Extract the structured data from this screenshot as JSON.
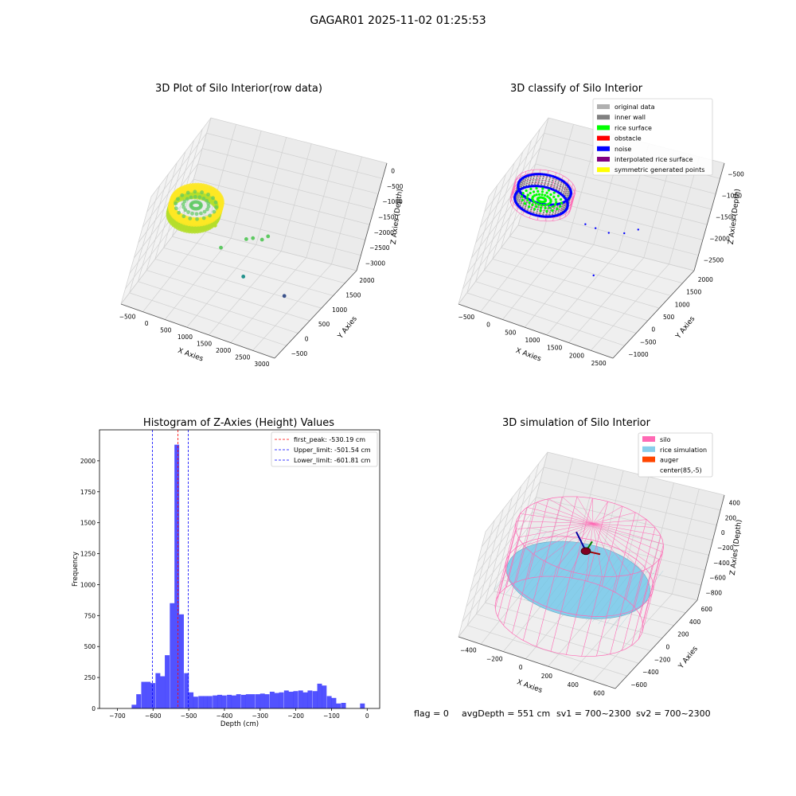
{
  "figure_title": "GAGAR01 2025-11-02 01:25:53",
  "footer": {
    "flag": "flag = 0",
    "avg": "avgDepth = 551 cm",
    "sv1": "sv1 = 700~2300",
    "sv2": "sv2 = 700~2300"
  },
  "colors": {
    "pane": "#f2f2f2",
    "grid": "#d0d0d0",
    "silo": "#ff69b4",
    "rice": "#87ceeb",
    "auger": "#ff4500",
    "noise": "#0000ff",
    "rice_surface": "#00ff00",
    "inner_wall": "#808080",
    "hist_bar": "#0000ff"
  },
  "chart_data": [
    {
      "type": "scatter3d",
      "title": "3D Plot of Silo Interior(row data)",
      "xlabel": "X Axies",
      "ylabel": "Y Axies",
      "zlabel": "Z Axies (Depth)",
      "x_ticks": [
        "−500",
        "0",
        "500",
        "1000",
        "1500",
        "2000",
        "2500",
        "3000"
      ],
      "y_ticks": [
        "−500",
        "0",
        "500",
        "1000",
        "1500",
        "2000"
      ],
      "z_ticks": [
        "0",
        "−500",
        "−1000",
        "−1500",
        "−2000",
        "−2500",
        "−3000"
      ],
      "xlim": [
        -700,
        3100
      ],
      "ylim": [
        -800,
        2100
      ],
      "zlim": [
        -3100,
        100
      ],
      "grid": true,
      "colormap": [
        "#3b528b",
        "#21918c",
        "#5ec962",
        "#b5de2b",
        "#fde725"
      ],
      "ring": {
        "cx": 100,
        "cy": 100,
        "r": 560,
        "z_top": -450,
        "z_bottom": -820
      },
      "outliers": [
        {
          "x": 600,
          "y": 300,
          "z": -1100
        },
        {
          "x": 900,
          "y": 200,
          "z": -1550
        },
        {
          "x": 1300,
          "y": 600,
          "z": -1450
        },
        {
          "x": 1400,
          "y": 750,
          "z": -1500
        },
        {
          "x": 1600,
          "y": 800,
          "z": -1500
        },
        {
          "x": 1700,
          "y": 850,
          "z": -1400
        },
        {
          "x": 1500,
          "y": 500,
          "z": -2400
        },
        {
          "x": 2400,
          "y": 1000,
          "z": -3000
        }
      ]
    },
    {
      "type": "scatter3d",
      "title": "3D classify of Silo Interior",
      "xlabel": "X Axies",
      "ylabel": "Y Axies",
      "zlabel": "Z Axies (Depth)",
      "x_ticks": [
        "−500",
        "0",
        "500",
        "1000",
        "1500",
        "2000",
        "2500"
      ],
      "y_ticks": [
        "−1000",
        "−500",
        "0",
        "500",
        "1000",
        "1500",
        "2000"
      ],
      "z_ticks": [
        "−500",
        "−1000",
        "−1500",
        "−2000",
        "−2500"
      ],
      "xlim": [
        -700,
        2800
      ],
      "ylim": [
        -1300,
        2200
      ],
      "zlim": [
        -2900,
        -200
      ],
      "grid": true,
      "legend": [
        {
          "label": "original data",
          "color": "#b0b0b0"
        },
        {
          "label": "inner wall",
          "color": "#808080"
        },
        {
          "label": "rice surface",
          "color": "#00ff00"
        },
        {
          "label": "obstacle",
          "color": "#ff0000"
        },
        {
          "label": "noise",
          "color": "#0000ff"
        },
        {
          "label": "interpolated rice surface",
          "color": "#800080"
        },
        {
          "label": "symmetric generated points",
          "color": "#ffff00"
        }
      ],
      "ring": {
        "cx": 100,
        "cy": 100,
        "r": 560,
        "z_top": -500,
        "z_bottom": -800
      },
      "noise_points": [
        {
          "x": 1100,
          "y": 300,
          "z": -1100
        },
        {
          "x": 1200,
          "y": 900,
          "z": -1500
        },
        {
          "x": 1500,
          "y": 900,
          "z": -1500
        },
        {
          "x": 1800,
          "y": 1000,
          "z": -1450
        },
        {
          "x": 2000,
          "y": 1300,
          "z": -1450
        },
        {
          "x": 1500,
          "y": 600,
          "z": -2400
        }
      ]
    },
    {
      "type": "bar",
      "title": "Histogram of Z-Axies (Height) Values",
      "xlabel": "Depth (cm)",
      "ylabel": "Frequency",
      "xlim": [
        -750,
        35
      ],
      "ylim": [
        0,
        2250
      ],
      "x_ticks": [
        -700,
        -600,
        -500,
        -400,
        -300,
        -200,
        -100,
        0
      ],
      "y_ticks": [
        0,
        250,
        500,
        750,
        1000,
        1250,
        1500,
        1750,
        2000
      ],
      "bin_width": 13.3,
      "bins_start": [
        -660,
        -647,
        -633,
        -620,
        -607,
        -593,
        -580,
        -567,
        -553,
        -540,
        -527,
        -513,
        -500,
        -487,
        -473,
        -460,
        -447,
        -433,
        -420,
        -407,
        -393,
        -380,
        -367,
        -353,
        -340,
        -327,
        -313,
        -300,
        -287,
        -273,
        -260,
        -247,
        -233,
        -220,
        -207,
        -193,
        -180,
        -167,
        -153,
        -140,
        -127,
        -113,
        -100,
        -87,
        -73,
        -60,
        -47,
        -33,
        -20,
        -7
      ],
      "values": [
        30,
        115,
        215,
        215,
        205,
        285,
        260,
        430,
        850,
        2130,
        760,
        285,
        130,
        95,
        100,
        100,
        100,
        105,
        110,
        105,
        110,
        105,
        115,
        110,
        115,
        115,
        115,
        120,
        115,
        135,
        125,
        130,
        145,
        135,
        140,
        145,
        130,
        145,
        140,
        200,
        185,
        100,
        85,
        40,
        45,
        0,
        0,
        0,
        40,
        0
      ],
      "lines": [
        {
          "label": "first_peak: -530.19 cm",
          "x": -530.19,
          "color": "#ff0000"
        },
        {
          "label": "Upper_limit: -501.54 cm",
          "x": -501.54,
          "color": "#0000ff"
        },
        {
          "label": "Lower_limit: -601.81 cm",
          "x": -601.81,
          "color": "#0000ff"
        }
      ],
      "legend_position": "top-right"
    },
    {
      "type": "surface3d",
      "title": "3D simulation of Silo Interior",
      "xlabel": "X Axies",
      "ylabel": "Y Axies",
      "zlabel": "Z Axies (Depth)",
      "x_ticks": [
        "−400",
        "−200",
        "0",
        "200",
        "400",
        "600"
      ],
      "y_ticks": [
        "−600",
        "−400",
        "−200",
        "0",
        "200",
        "400",
        "600"
      ],
      "z_ticks": [
        "400",
        "200",
        "0",
        "−200",
        "−400",
        "−600",
        "−800"
      ],
      "xlim": [
        -600,
        800
      ],
      "ylim": [
        -800,
        700
      ],
      "zlim": [
        -950,
        500
      ],
      "grid": true,
      "legend": [
        {
          "label": "silo",
          "color": "#ff69b4"
        },
        {
          "label": "rice simulation",
          "color": "#87ceeb"
        },
        {
          "label": "auger",
          "color": "#ff4500"
        },
        {
          "label": "center(85,-5)",
          "color": ""
        }
      ],
      "silo": {
        "cx": 85,
        "cy": -5,
        "r": 620,
        "z_top": 200,
        "z_bottom": -900
      },
      "rice_level": -400,
      "auger_center": {
        "x": 85,
        "y": -5,
        "z": 0
      }
    }
  ]
}
